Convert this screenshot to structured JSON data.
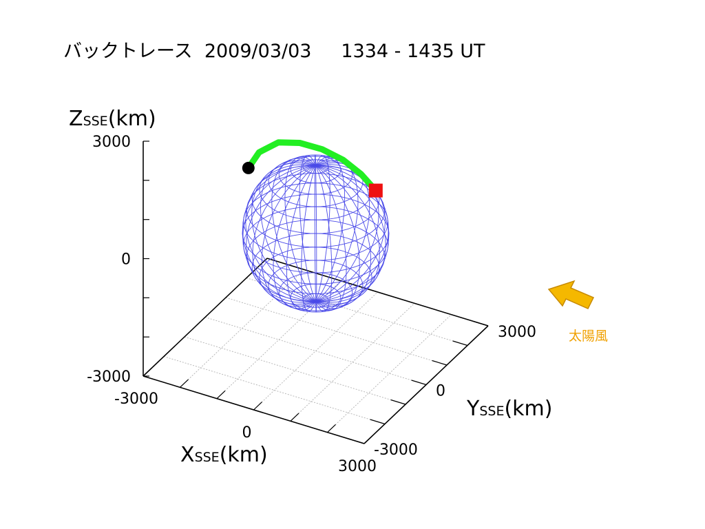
{
  "title": {
    "label": "バックトレース",
    "date": "2009/03/03",
    "time_range": "1334 - 1435 UT"
  },
  "colors": {
    "sphere": "#4a4ae8",
    "trace": "#22ee22",
    "start_marker": "#000000",
    "end_marker": "#ee1111",
    "arrow": "#f5b800",
    "solar_wind_text": "#f0a000"
  },
  "annotation": {
    "solar_wind": "太陽風",
    "arrow_icon": "arrow-icon"
  },
  "chart_data": {
    "type": "line",
    "projection": "3d",
    "axes": {
      "x": {
        "label_main": "X",
        "label_sub": "SSE",
        "unit": "(km)",
        "range": [
          -3000,
          3000
        ],
        "ticks": [
          "-3000",
          "0",
          "3000"
        ]
      },
      "y": {
        "label_main": "Y",
        "label_sub": "SSE",
        "unit": "(km)",
        "range": [
          -3000,
          3000
        ],
        "ticks": [
          "-3000",
          "0",
          "3000"
        ]
      },
      "z": {
        "label_main": "Z",
        "label_sub": "SSE",
        "unit": "(km)",
        "range": [
          -3000,
          3000
        ],
        "ticks": [
          "3000",
          "0",
          "-3000"
        ]
      }
    },
    "grid": true,
    "sphere": {
      "shape": "wireframe-sphere",
      "radius": 1737
    },
    "series": [
      {
        "points": [
          [
            -1680,
            -260,
            1320
          ],
          [
            -1580,
            80,
            1580
          ],
          [
            -1280,
            480,
            1720
          ],
          [
            -880,
            800,
            1660
          ],
          [
            -420,
            1060,
            1500
          ],
          [
            40,
            1260,
            1260
          ],
          [
            440,
            1410,
            940
          ],
          [
            780,
            1520,
            560
          ]
        ]
      }
    ],
    "markers": {
      "start": {
        "shape": "circle",
        "at": [
          -1680,
          -260,
          1320
        ]
      },
      "end": {
        "shape": "square",
        "at": [
          780,
          1520,
          560
        ]
      }
    }
  }
}
